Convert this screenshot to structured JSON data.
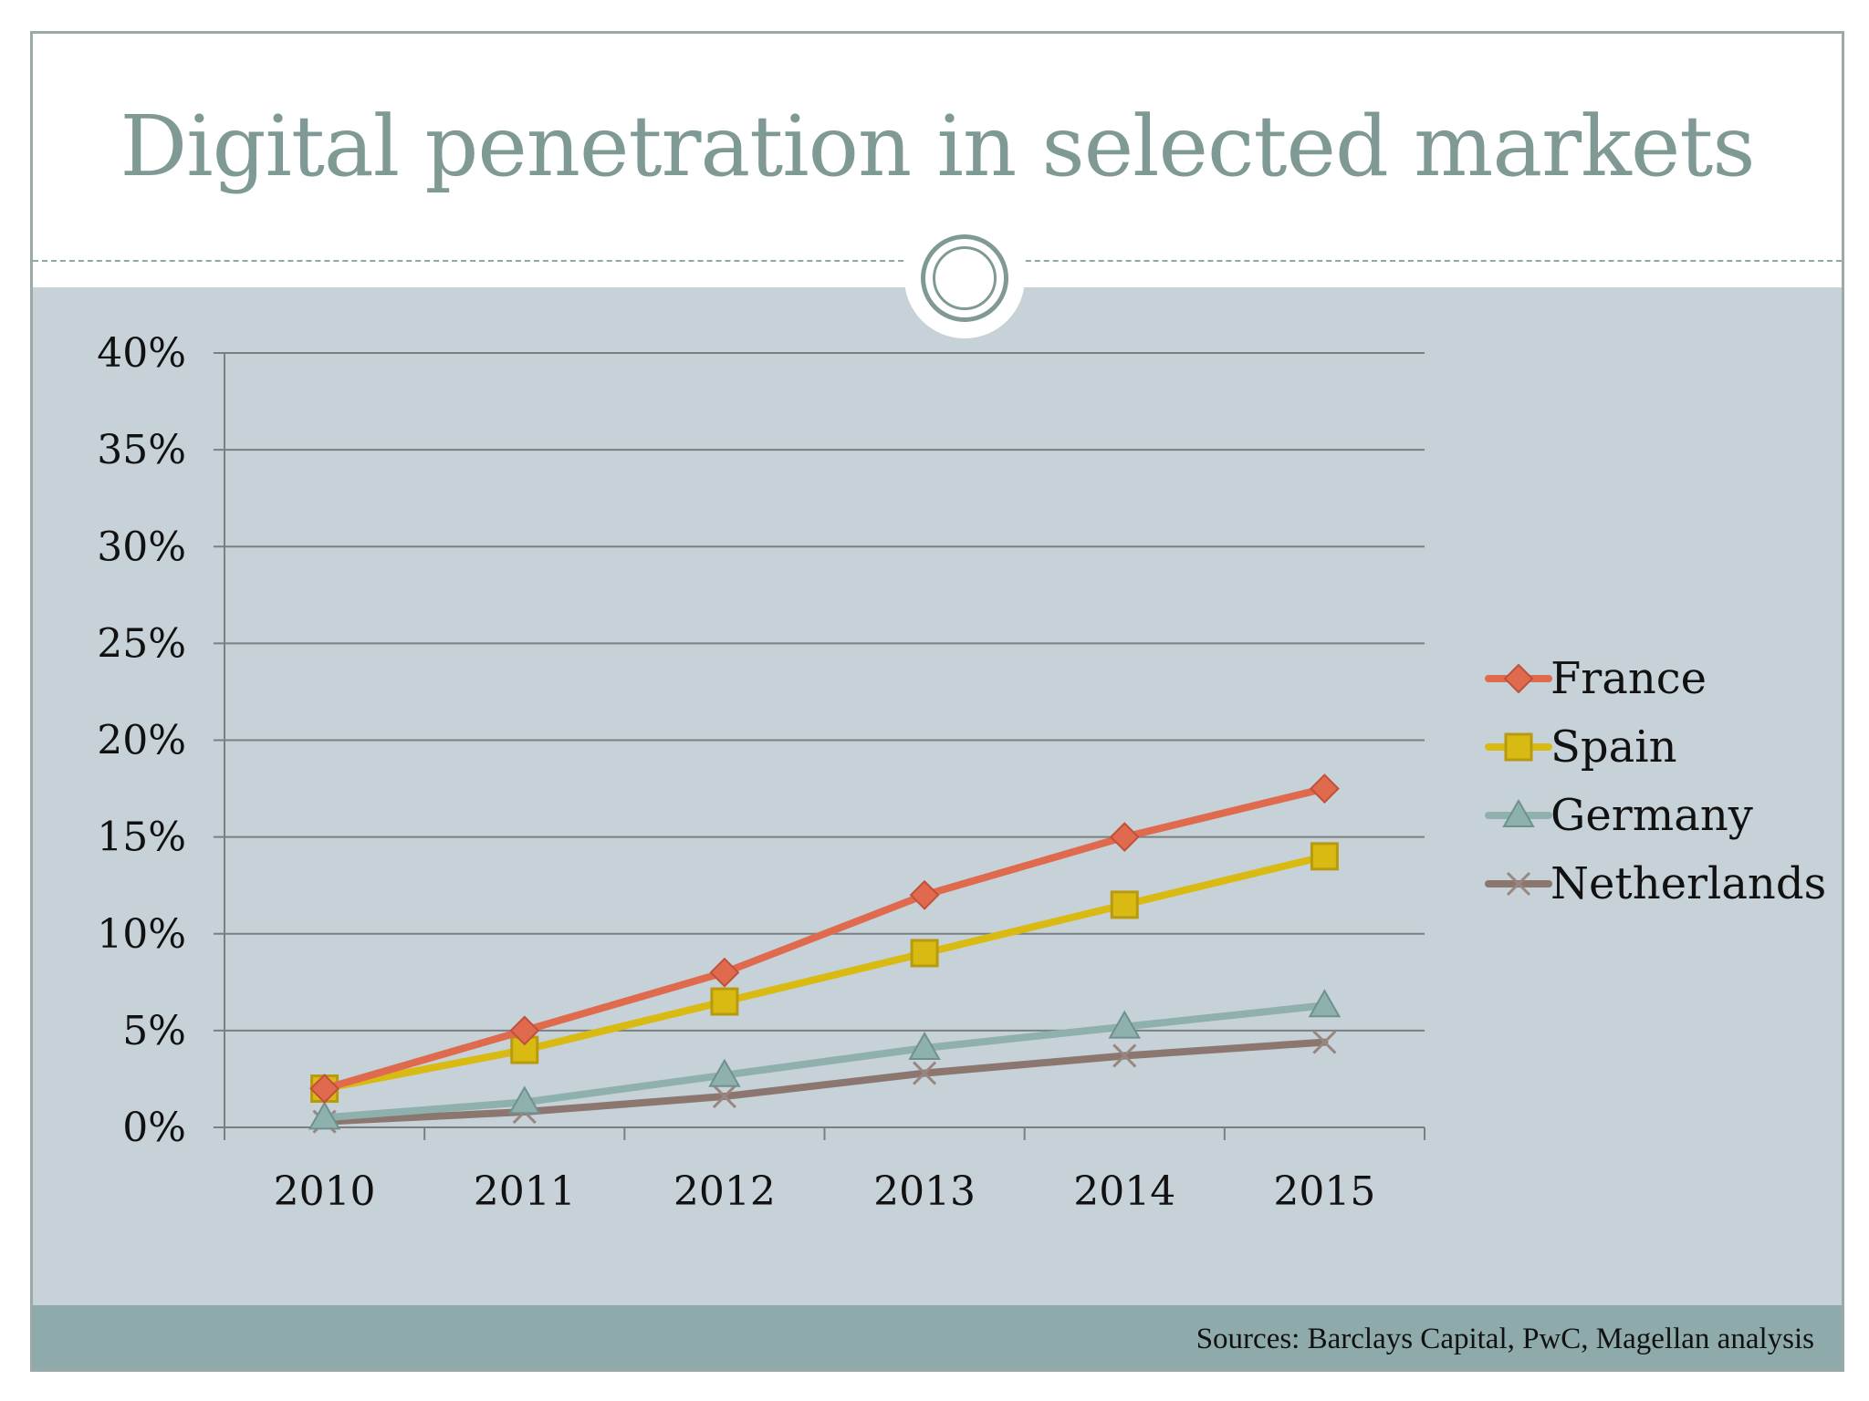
{
  "slide": {
    "title": "Digital penetration in selected markets",
    "source": "Sources: Barclays Capital, PwC, Magellan analysis"
  },
  "colors": {
    "background": "#c6d2d7",
    "footer": "#8eaaab",
    "title": "#7f9a95",
    "gridline": "#7a7f82"
  },
  "chart_data": {
    "type": "line",
    "title": "",
    "xlabel": "",
    "ylabel": "",
    "categories": [
      "2010",
      "2011",
      "2012",
      "2013",
      "2014",
      "2015"
    ],
    "ylim": [
      0,
      40
    ],
    "yticks": [
      "0%",
      "5%",
      "10%",
      "15%",
      "20%",
      "25%",
      "30%",
      "35%",
      "40%"
    ],
    "grid": true,
    "legend": "right",
    "series": [
      {
        "name": "France",
        "color": "#e06a4e",
        "marker": "diamond",
        "values": [
          2,
          5,
          8,
          12,
          15,
          17.5
        ]
      },
      {
        "name": "Spain",
        "color": "#d8ba12",
        "marker": "square",
        "values": [
          2,
          4,
          6.5,
          9,
          11.5,
          14
        ]
      },
      {
        "name": "Germany",
        "color": "#8fb1ad",
        "marker": "triangle",
        "values": [
          0.5,
          1.3,
          2.7,
          4.1,
          5.2,
          6.3
        ]
      },
      {
        "name": "Netherlands",
        "color": "#8c7670",
        "marker": "x",
        "values": [
          0.3,
          0.8,
          1.6,
          2.8,
          3.7,
          4.4
        ]
      }
    ]
  }
}
